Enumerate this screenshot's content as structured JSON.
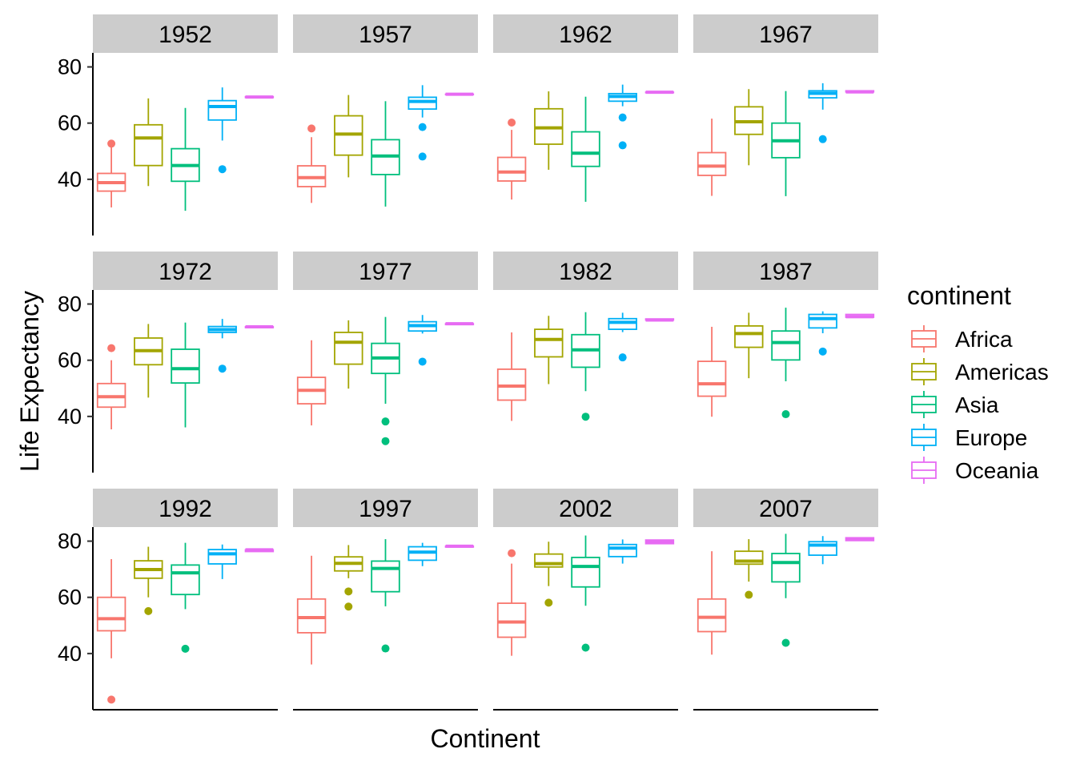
{
  "chart_data": {
    "type": "boxplot",
    "facet_by": "year",
    "facets": [
      "1952",
      "1957",
      "1962",
      "1967",
      "1972",
      "1977",
      "1982",
      "1987",
      "1992",
      "1997",
      "2002",
      "2007"
    ],
    "categories": [
      "Africa",
      "Americas",
      "Asia",
      "Europe",
      "Oceania"
    ],
    "xlabel": "Continent",
    "ylabel": "Life Expectancy",
    "ylim": [
      20,
      85
    ],
    "yticks": [
      40,
      60,
      80
    ],
    "legend": {
      "title": "continent",
      "position": "right",
      "entries": [
        {
          "label": "Africa",
          "color": "#F8766D"
        },
        {
          "label": "Americas",
          "color": "#A3A500"
        },
        {
          "label": "Asia",
          "color": "#00BF7D"
        },
        {
          "label": "Europe",
          "color": "#00B0F6"
        },
        {
          "label": "Oceania",
          "color": "#E76BF3"
        }
      ]
    },
    "grid": false,
    "boxes": [
      {
        "facet": "1952",
        "stats": [
          {
            "min": 30.0,
            "q1": 35.8,
            "median": 38.8,
            "q3": 42.1,
            "max": 52.7,
            "outliers": [
              52.7
            ]
          },
          {
            "min": 37.6,
            "q1": 44.9,
            "median": 54.7,
            "q3": 59.4,
            "max": 68.8,
            "outliers": []
          },
          {
            "min": 28.8,
            "q1": 39.3,
            "median": 44.9,
            "q3": 50.9,
            "max": 65.4,
            "outliers": []
          },
          {
            "min": 53.8,
            "q1": 61.1,
            "median": 65.9,
            "q3": 68.0,
            "max": 72.7,
            "outliers": [
              43.6
            ]
          },
          {
            "min": 69.1,
            "q1": 69.1,
            "median": 69.3,
            "q3": 69.4,
            "max": 69.4,
            "outliers": []
          }
        ]
      },
      {
        "facet": "1957",
        "stats": [
          {
            "min": 31.6,
            "q1": 37.4,
            "median": 40.6,
            "q3": 44.8,
            "max": 55.0,
            "outliers": [
              58.1
            ]
          },
          {
            "min": 40.7,
            "q1": 48.6,
            "median": 56.1,
            "q3": 62.6,
            "max": 70.0,
            "outliers": []
          },
          {
            "min": 30.3,
            "q1": 41.7,
            "median": 48.3,
            "q3": 54.1,
            "max": 67.8,
            "outliers": []
          },
          {
            "min": 62.0,
            "q1": 65.0,
            "median": 67.7,
            "q3": 69.2,
            "max": 73.5,
            "outliers": [
              58.6,
              48.1
            ]
          },
          {
            "min": 70.3,
            "q1": 70.3,
            "median": 70.3,
            "q3": 70.3,
            "max": 70.3,
            "outliers": []
          }
        ]
      },
      {
        "facet": "1962",
        "stats": [
          {
            "min": 32.8,
            "q1": 39.4,
            "median": 42.6,
            "q3": 47.8,
            "max": 57.6,
            "outliers": [
              60.2
            ]
          },
          {
            "min": 43.4,
            "q1": 52.5,
            "median": 58.3,
            "q3": 65.1,
            "max": 71.3,
            "outliers": []
          },
          {
            "min": 32.0,
            "q1": 44.6,
            "median": 49.3,
            "q3": 56.9,
            "max": 69.4,
            "outliers": []
          },
          {
            "min": 66.0,
            "q1": 67.8,
            "median": 69.5,
            "q3": 70.5,
            "max": 73.7,
            "outliers": [
              62.0,
              52.1
            ]
          },
          {
            "min": 70.9,
            "q1": 70.9,
            "median": 71.0,
            "q3": 71.0,
            "max": 71.0,
            "outliers": []
          }
        ]
      },
      {
        "facet": "1967",
        "stats": [
          {
            "min": 34.1,
            "q1": 41.4,
            "median": 44.7,
            "q3": 49.5,
            "max": 61.6,
            "outliers": []
          },
          {
            "min": 45.0,
            "q1": 56.0,
            "median": 60.5,
            "q3": 65.8,
            "max": 72.1,
            "outliers": []
          },
          {
            "min": 34.0,
            "q1": 47.7,
            "median": 53.7,
            "q3": 60.0,
            "max": 71.4,
            "outliers": []
          },
          {
            "min": 64.8,
            "q1": 69.0,
            "median": 70.6,
            "q3": 71.5,
            "max": 74.2,
            "outliers": [
              54.3
            ]
          },
          {
            "min": 71.1,
            "q1": 71.1,
            "median": 71.1,
            "q3": 71.5,
            "max": 71.5,
            "outliers": []
          }
        ]
      },
      {
        "facet": "1972",
        "stats": [
          {
            "min": 35.4,
            "q1": 43.3,
            "median": 47.0,
            "q3": 51.7,
            "max": 60.0,
            "outliers": [
              64.3
            ]
          },
          {
            "min": 46.7,
            "q1": 58.4,
            "median": 63.4,
            "q3": 67.9,
            "max": 72.9,
            "outliers": []
          },
          {
            "min": 36.1,
            "q1": 51.9,
            "median": 57.0,
            "q3": 63.9,
            "max": 73.4,
            "outliers": []
          },
          {
            "min": 67.8,
            "q1": 69.9,
            "median": 70.9,
            "q3": 72.0,
            "max": 74.7,
            "outliers": [
              57.0
            ]
          },
          {
            "min": 71.6,
            "q1": 71.6,
            "median": 71.9,
            "q3": 71.9,
            "max": 71.9,
            "outliers": []
          }
        ]
      },
      {
        "facet": "1977",
        "stats": [
          {
            "min": 36.8,
            "q1": 44.5,
            "median": 49.3,
            "q3": 53.9,
            "max": 67.1,
            "outliers": []
          },
          {
            "min": 49.9,
            "q1": 58.6,
            "median": 66.4,
            "q3": 69.9,
            "max": 74.2,
            "outliers": []
          },
          {
            "min": 44.5,
            "q1": 55.3,
            "median": 60.8,
            "q3": 66.0,
            "max": 75.4,
            "outliers": [
              38.2,
              31.2
            ]
          },
          {
            "min": 69.5,
            "q1": 70.4,
            "median": 72.3,
            "q3": 73.7,
            "max": 76.1,
            "outliers": [
              59.5
            ]
          },
          {
            "min": 72.7,
            "q1": 72.7,
            "median": 73.0,
            "q3": 73.0,
            "max": 73.0,
            "outliers": []
          }
        ]
      },
      {
        "facet": "1982",
        "stats": [
          {
            "min": 38.4,
            "q1": 45.8,
            "median": 50.8,
            "q3": 56.8,
            "max": 69.9,
            "outliers": []
          },
          {
            "min": 51.5,
            "q1": 61.2,
            "median": 67.4,
            "q3": 71.0,
            "max": 75.8,
            "outliers": []
          },
          {
            "min": 49.0,
            "q1": 57.5,
            "median": 63.7,
            "q3": 69.1,
            "max": 77.1,
            "outliers": [
              39.9
            ]
          },
          {
            "min": 70.0,
            "q1": 71.0,
            "median": 73.5,
            "q3": 74.8,
            "max": 76.9,
            "outliers": [
              61.0
            ]
          },
          {
            "min": 74.3,
            "q1": 74.3,
            "median": 74.3,
            "q3": 74.7,
            "max": 74.7,
            "outliers": []
          }
        ]
      },
      {
        "facet": "1987",
        "stats": [
          {
            "min": 39.9,
            "q1": 47.2,
            "median": 51.6,
            "q3": 59.6,
            "max": 71.9,
            "outliers": []
          },
          {
            "min": 53.6,
            "q1": 64.6,
            "median": 69.5,
            "q3": 72.2,
            "max": 76.9,
            "outliers": []
          },
          {
            "min": 52.5,
            "q1": 60.1,
            "median": 66.3,
            "q3": 70.4,
            "max": 78.7,
            "outliers": [
              40.8
            ]
          },
          {
            "min": 69.6,
            "q1": 71.5,
            "median": 74.8,
            "q3": 76.3,
            "max": 77.4,
            "outliers": [
              63.1
            ]
          },
          {
            "min": 75.3,
            "q1": 75.3,
            "median": 75.5,
            "q3": 76.3,
            "max": 76.3,
            "outliers": []
          }
        ]
      },
      {
        "facet": "1992",
        "stats": [
          {
            "min": 38.3,
            "q1": 48.1,
            "median": 52.4,
            "q3": 60.0,
            "max": 73.6,
            "outliers": [
              23.6
            ]
          },
          {
            "min": 60.0,
            "q1": 66.8,
            "median": 69.9,
            "q3": 73.0,
            "max": 78.0,
            "outliers": [
              55.1
            ]
          },
          {
            "min": 55.8,
            "q1": 61.0,
            "median": 68.7,
            "q3": 71.5,
            "max": 79.4,
            "outliers": [
              41.7
            ]
          },
          {
            "min": 66.5,
            "q1": 71.9,
            "median": 75.5,
            "q3": 77.0,
            "max": 78.8,
            "outliers": []
          },
          {
            "min": 76.3,
            "q1": 76.3,
            "median": 76.9,
            "q3": 76.9,
            "max": 76.9,
            "outliers": []
          }
        ]
      },
      {
        "facet": "1997",
        "stats": [
          {
            "min": 36.1,
            "q1": 47.4,
            "median": 52.8,
            "q3": 59.4,
            "max": 74.8,
            "outliers": []
          },
          {
            "min": 66.8,
            "q1": 69.4,
            "median": 72.1,
            "q3": 74.4,
            "max": 78.6,
            "outliers": [
              62.1,
              56.7
            ]
          },
          {
            "min": 56.8,
            "q1": 62.0,
            "median": 70.3,
            "q3": 72.9,
            "max": 80.7,
            "outliers": [
              41.8
            ]
          },
          {
            "min": 71.1,
            "q1": 73.2,
            "median": 76.1,
            "q3": 78.0,
            "max": 79.4,
            "outliers": []
          },
          {
            "min": 77.9,
            "q1": 77.9,
            "median": 78.2,
            "q3": 78.2,
            "max": 78.2,
            "outliers": []
          }
        ]
      },
      {
        "facet": "2002",
        "stats": [
          {
            "min": 39.2,
            "q1": 45.8,
            "median": 51.2,
            "q3": 57.9,
            "max": 72.0,
            "outliers": [
              75.7
            ]
          },
          {
            "min": 64.0,
            "q1": 70.8,
            "median": 72.0,
            "q3": 75.4,
            "max": 79.8,
            "outliers": [
              58.1
            ]
          },
          {
            "min": 57.0,
            "q1": 63.7,
            "median": 71.0,
            "q3": 74.2,
            "max": 82.0,
            "outliers": [
              42.1
            ]
          },
          {
            "min": 72.0,
            "q1": 74.5,
            "median": 77.5,
            "q3": 78.8,
            "max": 80.6,
            "outliers": []
          },
          {
            "min": 79.1,
            "q1": 79.1,
            "median": 79.7,
            "q3": 80.4,
            "max": 80.4,
            "outliers": []
          }
        ]
      },
      {
        "facet": "2007",
        "stats": [
          {
            "min": 39.6,
            "q1": 47.8,
            "median": 52.9,
            "q3": 59.4,
            "max": 76.4,
            "outliers": []
          },
          {
            "min": 65.6,
            "q1": 71.8,
            "median": 72.9,
            "q3": 76.4,
            "max": 80.7,
            "outliers": [
              60.9
            ]
          },
          {
            "min": 59.7,
            "q1": 65.5,
            "median": 72.4,
            "q3": 75.6,
            "max": 82.6,
            "outliers": [
              43.8
            ]
          },
          {
            "min": 71.8,
            "q1": 75.0,
            "median": 78.6,
            "q3": 79.8,
            "max": 81.8,
            "outliers": []
          },
          {
            "min": 80.2,
            "q1": 80.2,
            "median": 80.7,
            "q3": 81.2,
            "max": 81.2,
            "outliers": []
          }
        ]
      }
    ]
  }
}
